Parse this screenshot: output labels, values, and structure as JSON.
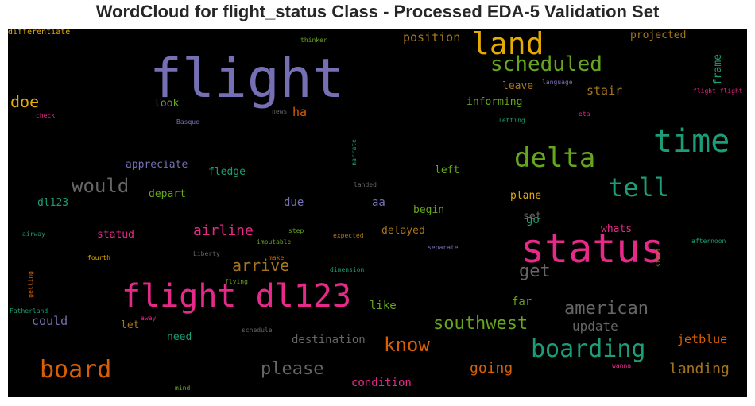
{
  "chart_data": {
    "type": "wordcloud",
    "title": "WordCloud for flight_status Class - Processed EDA-5 Validation Set",
    "background": "#000000",
    "words": [
      {
        "text": "flight",
        "color": "#7570b3"
      },
      {
        "text": "status",
        "color": "#e7298a"
      },
      {
        "text": "flight dl123",
        "color": "#e7298a"
      },
      {
        "text": "time",
        "color": "#1b9e77"
      },
      {
        "text": "land",
        "color": "#e6ab02"
      },
      {
        "text": "delta",
        "color": "#66a61e"
      },
      {
        "text": "boarding",
        "color": "#1b9e77"
      },
      {
        "text": "board",
        "color": "#d95f02"
      },
      {
        "text": "tell",
        "color": "#1b9e77"
      },
      {
        "text": "scheduled",
        "color": "#66a61e"
      },
      {
        "text": "southwest",
        "color": "#66a61e"
      },
      {
        "text": "american",
        "color": "#666666"
      },
      {
        "text": "would",
        "color": "#666666"
      },
      {
        "text": "know",
        "color": "#d95f02"
      },
      {
        "text": "please",
        "color": "#666666"
      },
      {
        "text": "get",
        "color": "#666666"
      },
      {
        "text": "arrive",
        "color": "#a6761d"
      },
      {
        "text": "airline",
        "color": "#e7298a"
      },
      {
        "text": "landing",
        "color": "#a6761d"
      },
      {
        "text": "going",
        "color": "#d95f02"
      },
      {
        "text": "doe",
        "color": "#e6ab02"
      },
      {
        "text": "update",
        "color": "#666666"
      },
      {
        "text": "jetblue",
        "color": "#d95f02"
      },
      {
        "text": "destination",
        "color": "#666666"
      },
      {
        "text": "could",
        "color": "#7570b3"
      },
      {
        "text": "position",
        "color": "#a6761d"
      },
      {
        "text": "stair",
        "color": "#a6761d"
      },
      {
        "text": "condition",
        "color": "#e7298a"
      },
      {
        "text": "ha",
        "color": "#d95f02"
      },
      {
        "text": "projected",
        "color": "#a6761d"
      },
      {
        "text": "informing",
        "color": "#66a61e"
      },
      {
        "text": "leave",
        "color": "#a6761d"
      },
      {
        "text": "appreciate",
        "color": "#7570b3"
      },
      {
        "text": "fledge",
        "color": "#1b9e77"
      },
      {
        "text": "left",
        "color": "#66a61e"
      },
      {
        "text": "depart",
        "color": "#66a61e"
      },
      {
        "text": "dl123",
        "color": "#1b9e77"
      },
      {
        "text": "due",
        "color": "#7570b3"
      },
      {
        "text": "aa",
        "color": "#7570b3"
      },
      {
        "text": "begin",
        "color": "#66a61e"
      },
      {
        "text": "plane",
        "color": "#e6ab02"
      },
      {
        "text": "set",
        "color": "#666666"
      },
      {
        "text": "go",
        "color": "#1b9e77"
      },
      {
        "text": "whats",
        "color": "#e7298a"
      },
      {
        "text": "statud",
        "color": "#e7298a"
      },
      {
        "text": "delayed",
        "color": "#a6761d"
      },
      {
        "text": "far",
        "color": "#66a61e"
      },
      {
        "text": "like",
        "color": "#66a61e"
      },
      {
        "text": "let",
        "color": "#a6761d"
      },
      {
        "text": "need",
        "color": "#1b9e77"
      },
      {
        "text": "look",
        "color": "#66a61e"
      },
      {
        "text": "frame",
        "color": "#1b9e77",
        "vertical": true
      },
      {
        "text": "language",
        "color": "#7570b3"
      },
      {
        "text": "flight flight",
        "color": "#e7298a"
      },
      {
        "text": "thinker",
        "color": "#66a61e"
      },
      {
        "text": "check",
        "color": "#e7298a"
      },
      {
        "text": "Basque",
        "color": "#7570b3"
      },
      {
        "text": "news",
        "color": "#666666"
      },
      {
        "text": "eta",
        "color": "#e7298a"
      },
      {
        "text": "letting",
        "color": "#1b9e77"
      },
      {
        "text": "narrate",
        "color": "#1b9e77",
        "vertical": true
      },
      {
        "text": "landed",
        "color": "#666666"
      },
      {
        "text": "airway",
        "color": "#1b9e77"
      },
      {
        "text": "step",
        "color": "#66a61e"
      },
      {
        "text": "expected",
        "color": "#a6761d"
      },
      {
        "text": "imputable",
        "color": "#66a61e"
      },
      {
        "text": "Liberty",
        "color": "#666666"
      },
      {
        "text": "make",
        "color": "#d95f02"
      },
      {
        "text": "separate",
        "color": "#7570b3"
      },
      {
        "text": "start",
        "color": "#a6761d",
        "vertical": true
      },
      {
        "text": "afternoon",
        "color": "#1b9e77"
      },
      {
        "text": "fourth",
        "color": "#e6ab02"
      },
      {
        "text": "getting",
        "color": "#d95f02",
        "vertical": true
      },
      {
        "text": "flying",
        "color": "#66a61e"
      },
      {
        "text": "dimension",
        "color": "#1b9e77"
      },
      {
        "text": "Fatherland",
        "color": "#1b9e77"
      },
      {
        "text": "away",
        "color": "#e7298a"
      },
      {
        "text": "schedule",
        "color": "#666666"
      },
      {
        "text": "wanna",
        "color": "#e7298a"
      },
      {
        "text": "mind",
        "color": "#66a61e"
      },
      {
        "text": "differentiate",
        "color": "#e6ab02"
      }
    ]
  }
}
